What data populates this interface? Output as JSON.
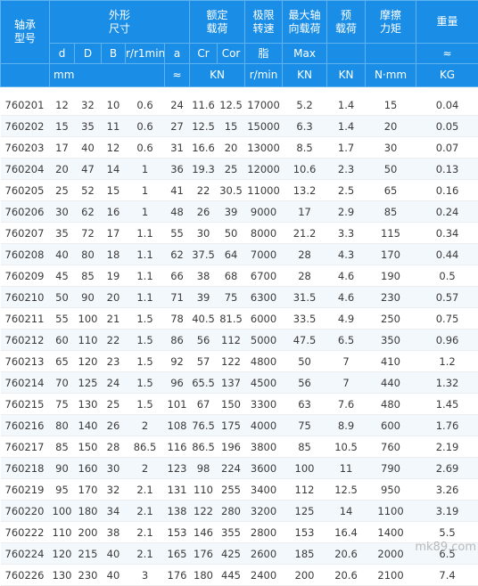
{
  "header": {
    "model": "轴承\n型号",
    "dims": "外形\n尺寸",
    "rated_load": "额定\n载荷",
    "limit_speed": "极限\n转速",
    "max_axial": "最大轴\n向载荷",
    "preload": "预\n载荷",
    "friction": "摩擦\n力矩",
    "weight": "重量",
    "sub": [
      "d",
      "D",
      "B",
      "r/r1min",
      "a",
      "Cr",
      "Cor",
      "脂",
      "Max",
      "",
      "",
      "≈"
    ],
    "units": [
      "mm",
      "≈",
      "KN",
      "r/min",
      "KN",
      "KN",
      "N·mm",
      "KG"
    ]
  },
  "rows": [
    [
      "760201",
      "12",
      "32",
      "10",
      "0.6",
      "24",
      "11.6",
      "12.5",
      "17000",
      "5.2",
      "1.4",
      "15",
      "0.04"
    ],
    [
      "760202",
      "15",
      "35",
      "11",
      "0.6",
      "27",
      "12.5",
      "15",
      "15000",
      "6.3",
      "1.4",
      "20",
      "0.05"
    ],
    [
      "760203",
      "17",
      "40",
      "12",
      "0.6",
      "31",
      "16.6",
      "20",
      "13000",
      "8.5",
      "1.7",
      "30",
      "0.07"
    ],
    [
      "760204",
      "20",
      "47",
      "14",
      "1",
      "36",
      "19.3",
      "25",
      "12000",
      "10.6",
      "2.3",
      "50",
      "0.13"
    ],
    [
      "760205",
      "25",
      "52",
      "15",
      "1",
      "41",
      "22",
      "30.5",
      "11000",
      "13.2",
      "2.5",
      "65",
      "0.16"
    ],
    [
      "760206",
      "30",
      "62",
      "16",
      "1",
      "48",
      "26",
      "39",
      "9000",
      "17",
      "2.9",
      "85",
      "0.24"
    ],
    [
      "760207",
      "35",
      "72",
      "17",
      "1.1",
      "55",
      "30",
      "50",
      "8000",
      "21.2",
      "3.3",
      "115",
      "0.34"
    ],
    [
      "760208",
      "40",
      "80",
      "18",
      "1.1",
      "62",
      "37.5",
      "64",
      "7000",
      "28",
      "4.3",
      "170",
      "0.44"
    ],
    [
      "760209",
      "45",
      "85",
      "19",
      "1.1",
      "66",
      "38",
      "68",
      "6700",
      "28",
      "4.6",
      "190",
      "0.5"
    ],
    [
      "760210",
      "50",
      "90",
      "20",
      "1.1",
      "71",
      "39",
      "75",
      "6300",
      "31.5",
      "4.6",
      "230",
      "0.57"
    ],
    [
      "760211",
      "55",
      "100",
      "21",
      "1.5",
      "78",
      "40.5",
      "81.5",
      "6000",
      "33.5",
      "4.9",
      "250",
      "0.75"
    ],
    [
      "760212",
      "60",
      "110",
      "22",
      "1.5",
      "86",
      "56",
      "112",
      "5000",
      "47.5",
      "6.5",
      "350",
      "0.96"
    ],
    [
      "760213",
      "65",
      "120",
      "23",
      "1.5",
      "92",
      "57",
      "122",
      "4800",
      "50",
      "7",
      "410",
      "1.2"
    ],
    [
      "760214",
      "70",
      "125",
      "24",
      "1.5",
      "96",
      "65.5",
      "137",
      "4500",
      "56",
      "7",
      "440",
      "1.32"
    ],
    [
      "760215",
      "75",
      "130",
      "25",
      "1.5",
      "101",
      "67",
      "150",
      "3300",
      "63",
      "7.6",
      "480",
      "1.45"
    ],
    [
      "760216",
      "80",
      "140",
      "26",
      "2",
      "108",
      "76.5",
      "175",
      "4000",
      "75",
      "8.9",
      "600",
      "1.76"
    ],
    [
      "760217",
      "85",
      "150",
      "28",
      "86.5",
      "116",
      "86.5",
      "196",
      "3800",
      "85",
      "10.5",
      "760",
      "2.19"
    ],
    [
      "760218",
      "90",
      "160",
      "30",
      "2",
      "123",
      "98",
      "224",
      "3600",
      "100",
      "11",
      "790",
      "2.69"
    ],
    [
      "760219",
      "95",
      "170",
      "32",
      "2.1",
      "131",
      "110",
      "255",
      "3400",
      "112",
      "12.5",
      "950",
      "3.26"
    ],
    [
      "760220",
      "100",
      "180",
      "34",
      "2.1",
      "138",
      "122",
      "280",
      "3200",
      "125",
      "14",
      "1100",
      "3.19"
    ],
    [
      "760222",
      "110",
      "200",
      "38",
      "2.1",
      "153",
      "146",
      "355",
      "2800",
      "153",
      "16.4",
      "1400",
      "5.5"
    ],
    [
      "760224",
      "120",
      "215",
      "40",
      "2.1",
      "165",
      "176",
      "425",
      "2600",
      "185",
      "20.6",
      "2000",
      "6.5"
    ],
    [
      "760226",
      "130",
      "230",
      "40",
      "3",
      "176",
      "180",
      "445",
      "2400",
      "200",
      "20.6",
      "2100",
      "7.4"
    ]
  ],
  "watermark": "mk89.com"
}
